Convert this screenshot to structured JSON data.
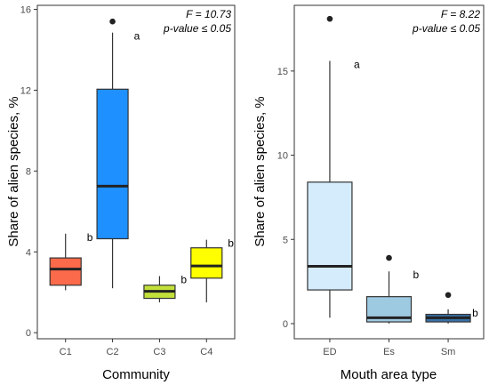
{
  "chart_data": [
    {
      "type": "box",
      "xlabel": "Community",
      "ylabel": "Share of alien species, %",
      "ylim": [
        -0.3,
        16.2
      ],
      "yticks": [
        0,
        4,
        8,
        12,
        16
      ],
      "annotation_lines": [
        "F = 10.73",
        "p-value ≤ 0.05"
      ],
      "grid": false,
      "categories": [
        "C1",
        "C2",
        "C3",
        "C4"
      ],
      "boxes": [
        {
          "category": "C1",
          "color": "#fb6a4a",
          "whisker_low": 2.1,
          "q1": 2.35,
          "median": 3.15,
          "q3": 3.7,
          "whisker_high": 4.9,
          "outliers": [],
          "letter": "b"
        },
        {
          "category": "C2",
          "color": "#1e90ff",
          "whisker_low": 2.2,
          "q1": 4.65,
          "median": 7.25,
          "q3": 12.05,
          "whisker_high": 14.85,
          "outliers": [
            15.4
          ],
          "letter": "a"
        },
        {
          "category": "C3",
          "color": "#c2e03a",
          "whisker_low": 1.5,
          "q1": 1.7,
          "median": 2.05,
          "q3": 2.35,
          "whisker_high": 2.8,
          "outliers": [],
          "letter": "b"
        },
        {
          "category": "C4",
          "color": "#ffff00",
          "whisker_low": 1.5,
          "q1": 2.7,
          "median": 3.3,
          "q3": 4.2,
          "whisker_high": 4.6,
          "outliers": [],
          "letter": "b"
        }
      ]
    },
    {
      "type": "box",
      "xlabel": "Mouth area type",
      "ylabel": "Share of alien species, %",
      "ylim": [
        -0.9,
        18.9
      ],
      "yticks": [
        0,
        5,
        10,
        15
      ],
      "annotation_lines": [
        "F = 8.22",
        "p-value ≤ 0.05"
      ],
      "grid": false,
      "categories": [
        "ED",
        "Es",
        "Sm"
      ],
      "boxes": [
        {
          "category": "ED",
          "color": "#d4ecfc",
          "whisker_low": 0.35,
          "q1": 2.0,
          "median": 3.4,
          "q3": 8.4,
          "whisker_high": 15.6,
          "outliers": [
            18.1
          ],
          "letter": "a"
        },
        {
          "category": "Es",
          "color": "#9ecae1",
          "whisker_low": 0.0,
          "q1": 0.1,
          "median": 0.35,
          "q3": 1.6,
          "whisker_high": 3.1,
          "outliers": [
            3.9
          ],
          "letter": "b"
        },
        {
          "category": "Sm",
          "color": "#3a70a8",
          "whisker_low": 0.0,
          "q1": 0.1,
          "median": 0.35,
          "q3": 0.55,
          "whisker_high": 0.85,
          "outliers": [
            1.7
          ],
          "letter": "b"
        }
      ]
    }
  ]
}
